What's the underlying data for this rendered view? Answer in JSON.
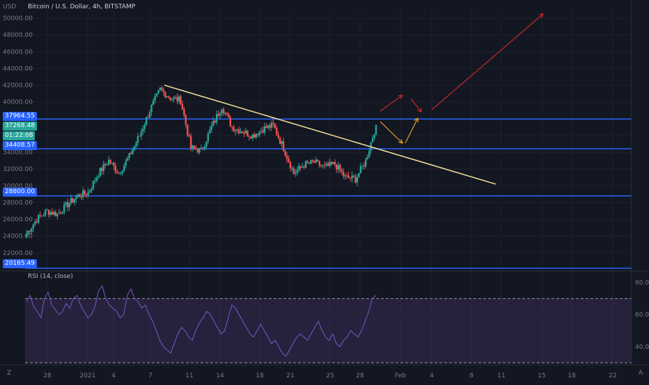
{
  "header": {
    "currency": "USD",
    "title": "Bitcoin / U.S. Dollar, 4h, BITSTAMP"
  },
  "rsi_label": "RSI (14, close)",
  "footer": {
    "tz_button": "Z",
    "auto_button": "A"
  },
  "price_labels": {
    "res1": "37964.55",
    "last": "37268.48",
    "countdown": "01:22:08",
    "sup1": "34408.57",
    "sup2": "28800.00",
    "sup3": "20165.49"
  },
  "colors": {
    "background": "#131722",
    "up": "#26a69a",
    "down": "#ef5350",
    "level_line": "#2962ff",
    "trendline": "#f5e39a",
    "rsi": "#7e57c2",
    "red_arrow": "#c62828",
    "orange_arrow": "#f0a020"
  },
  "chart_data": [
    {
      "type": "candlestick",
      "title": "Bitcoin / U.S. Dollar, 4h, BITSTAMP",
      "y_axis_ticks": [
        "50000.00",
        "48000.00",
        "46000.00",
        "44000.00",
        "42000.00",
        "40000.00",
        "38000.00",
        "36000.00",
        "34000.00",
        "32000.00",
        "30000.00",
        "28000.00",
        "26000.00",
        "24000.00",
        "22000.00"
      ],
      "x_axis_ticks": [
        "28",
        "2021",
        "4",
        "7",
        "11",
        "14",
        "18",
        "21",
        "25",
        "28",
        "Feb",
        "4",
        "8",
        "11",
        "15",
        "18",
        "22"
      ],
      "ylim": [
        20000,
        51000
      ],
      "horizontal_levels": [
        37964.55,
        34408.57,
        28800.0,
        20165.49
      ],
      "current_price": 37268.48,
      "trendline": {
        "from": [
          "Jan 8",
          42000
        ],
        "to": [
          "Feb 11",
          30200
        ]
      },
      "close_path": [
        [
          "Dec 26",
          24300
        ],
        [
          "Dec 27",
          26000
        ],
        [
          "Dec 28",
          27000
        ],
        [
          "Dec 29",
          26600
        ],
        [
          "Dec 30",
          27800
        ],
        [
          "Dec 31",
          28800
        ],
        [
          "2021",
          29200
        ],
        [
          "Jan 2",
          31500
        ],
        [
          "Jan 3",
          33000
        ],
        [
          "Jan 4",
          31500
        ],
        [
          "Jan 5",
          33500
        ],
        [
          "Jan 6",
          36000
        ],
        [
          "Jan 7",
          39000
        ],
        [
          "Jan 8",
          41500
        ],
        [
          "Jan 9",
          40500
        ],
        [
          "Jan 10",
          40200
        ],
        [
          "Jan 11",
          34500
        ],
        [
          "Jan 12",
          34200
        ],
        [
          "Jan 13",
          37000
        ],
        [
          "Jan 14",
          39500
        ],
        [
          "Jan 15",
          37000
        ],
        [
          "Jan 16",
          36500
        ],
        [
          "Jan 17",
          36000
        ],
        [
          "Jan 18",
          36800
        ],
        [
          "Jan 19",
          37200
        ],
        [
          "Jan 20",
          34500
        ],
        [
          "Jan 21",
          31500
        ],
        [
          "Jan 22",
          32500
        ],
        [
          "Jan 23",
          32800
        ],
        [
          "Jan 24",
          32200
        ],
        [
          "Jan 25",
          32600
        ],
        [
          "Jan 26",
          31000
        ],
        [
          "Jan 27",
          30800
        ],
        [
          "Jan 28",
          33000
        ],
        [
          "Jan 29",
          37268
        ]
      ]
    },
    {
      "type": "line",
      "title": "RSI (14, close)",
      "y_axis_ticks": [
        "80.00",
        "60.00",
        "40.00"
      ],
      "ylim": [
        30,
        85
      ],
      "band": [
        30,
        70
      ],
      "series": [
        {
          "values": [
            68,
            72,
            65,
            62,
            58,
            70,
            74,
            66,
            63,
            60,
            62,
            67,
            64,
            70,
            72,
            66,
            62,
            58,
            60,
            65,
            75,
            78,
            70,
            66,
            64,
            62,
            58,
            60,
            72,
            76,
            70,
            68,
            64,
            66,
            60,
            56,
            50,
            44,
            40,
            38,
            36,
            42,
            48,
            52,
            50,
            46,
            44,
            50,
            55,
            58,
            62,
            60,
            56,
            52,
            48,
            50,
            58,
            66,
            64,
            60,
            56,
            52,
            48,
            46,
            50,
            54,
            50,
            46,
            42,
            44,
            40,
            36,
            34,
            38,
            42,
            46,
            48,
            46,
            44,
            48,
            52,
            56,
            50,
            46,
            44,
            48,
            42,
            40,
            44,
            46,
            50,
            48,
            46,
            50,
            56,
            62,
            70,
            72
          ]
        }
      ]
    }
  ]
}
